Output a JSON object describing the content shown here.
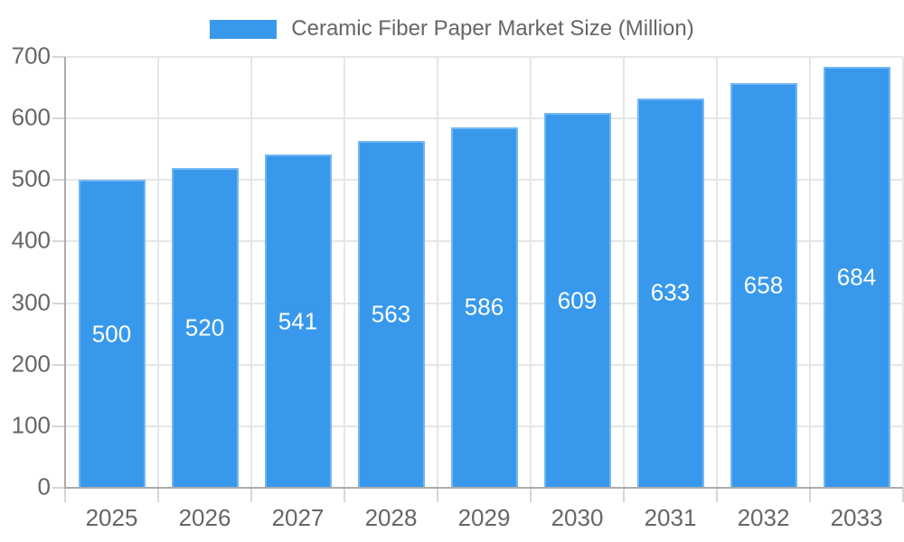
{
  "legend": {
    "label": "Ceramic Fiber Paper Market Size (Million)"
  },
  "chart_data": {
    "type": "bar",
    "title": "",
    "series_name": "Ceramic Fiber Paper Market Size (Million)",
    "categories": [
      "2025",
      "2026",
      "2027",
      "2028",
      "2029",
      "2030",
      "2031",
      "2032",
      "2033"
    ],
    "values": [
      500,
      520,
      541,
      563,
      586,
      609,
      633,
      658,
      684
    ],
    "xlabel": "",
    "ylabel": "",
    "ylim": [
      0,
      700
    ],
    "yticks": [
      0,
      100,
      200,
      300,
      400,
      500,
      600,
      700
    ],
    "grid": true,
    "legend_position": "top-center",
    "value_labels": "inside-center"
  },
  "colors": {
    "bar": "#3899EC",
    "grid_line": "#E6E6E6",
    "tick_line": "#D6D6D6",
    "axis_line": "#ACACAC",
    "label_text": "#666666",
    "value_label_text": "#FFFFFF",
    "background": "#FFFFFF"
  }
}
